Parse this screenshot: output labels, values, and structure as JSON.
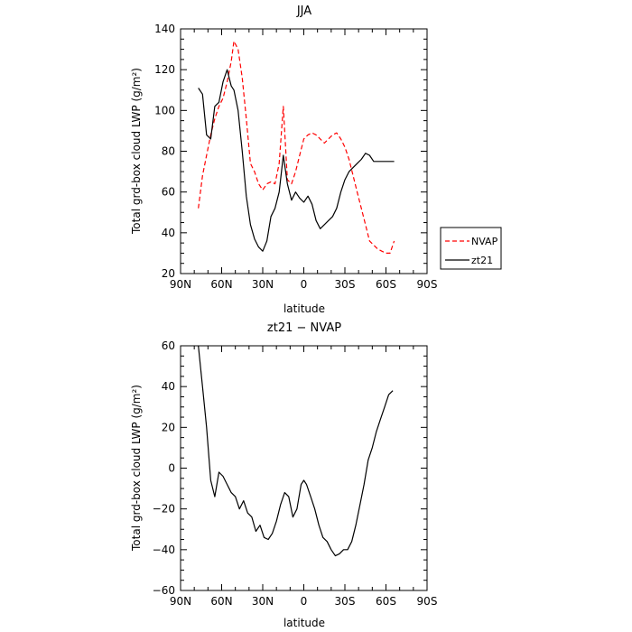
{
  "chart_data": [
    {
      "type": "line",
      "title": "JJA",
      "xlabel": "latitude",
      "ylabel": "Total grd-box cloud LWP (g/m²)",
      "xlim": [
        90,
        -90
      ],
      "ylim": [
        20,
        140
      ],
      "xticks": [
        90,
        60,
        30,
        0,
        -30,
        -60,
        -90
      ],
      "xtick_labels": [
        "90N",
        "60N",
        "30N",
        "0",
        "30S",
        "60S",
        "90S"
      ],
      "yticks": [
        20,
        40,
        60,
        80,
        100,
        120,
        140
      ],
      "ytick_labels": [
        "20",
        "40",
        "60",
        "80",
        "100",
        "120",
        "140"
      ],
      "legend_position": "outside-right",
      "series": [
        {
          "name": "NVAP",
          "color": "#ff0000",
          "dash": "dashed",
          "x": [
            77,
            74,
            71,
            68,
            65,
            62,
            59,
            56,
            53,
            51,
            48,
            45,
            42,
            39,
            36,
            33,
            30,
            27,
            24,
            21,
            18,
            15,
            12,
            9,
            6,
            3,
            0,
            -3,
            -6,
            -9,
            -12,
            -15,
            -18,
            -21,
            -24,
            -27,
            -30,
            -33,
            -36,
            -39,
            -42,
            -45,
            -48,
            -51,
            -54,
            -57,
            -60,
            -63,
            -66
          ],
          "y": [
            52,
            68,
            78,
            88,
            96,
            102,
            106,
            114,
            124,
            134,
            130,
            116,
            96,
            74,
            70,
            64,
            61,
            64,
            65,
            64,
            74,
            102,
            66,
            64,
            70,
            78,
            86,
            88,
            89,
            88,
            86,
            84,
            86,
            88,
            89,
            86,
            82,
            76,
            68,
            60,
            52,
            44,
            36,
            34,
            32,
            31,
            30,
            30,
            36
          ]
        },
        {
          "name": "zt21",
          "color": "#000000",
          "dash": "solid",
          "x": [
            77,
            74,
            71,
            68,
            65,
            62,
            59,
            56,
            53,
            51,
            48,
            45,
            42,
            39,
            36,
            33,
            30,
            27,
            24,
            21,
            18,
            15,
            12,
            9,
            6,
            3,
            0,
            -3,
            -6,
            -9,
            -12,
            -15,
            -18,
            -21,
            -24,
            -27,
            -30,
            -33,
            -36,
            -39,
            -42,
            -45,
            -48,
            -51,
            -54,
            -57,
            -60,
            -63,
            -66
          ],
          "y": [
            111,
            108,
            88,
            86,
            102,
            104,
            114,
            120,
            112,
            110,
            100,
            80,
            58,
            44,
            37,
            33,
            31,
            36,
            48,
            52,
            60,
            78,
            64,
            56,
            60,
            57,
            55,
            58,
            54,
            46,
            42,
            44,
            46,
            48,
            52,
            60,
            66,
            70,
            72,
            74,
            76,
            79,
            78,
            75,
            75,
            75,
            75,
            75,
            75
          ]
        }
      ]
    },
    {
      "type": "line",
      "title": "zt21 − NVAP",
      "xlabel": "latitude",
      "ylabel": "Total grd-box cloud LWP (g/m²)",
      "xlim": [
        90,
        -90
      ],
      "ylim": [
        -60,
        60
      ],
      "xticks": [
        90,
        60,
        30,
        0,
        -30,
        -60,
        -90
      ],
      "xtick_labels": [
        "90N",
        "60N",
        "30N",
        "0",
        "30S",
        "60S",
        "90S"
      ],
      "yticks": [
        -60,
        -40,
        -20,
        0,
        20,
        40,
        60
      ],
      "ytick_labels": [
        "−60",
        "−40",
        "−20",
        "0",
        "20",
        "40",
        "60"
      ],
      "series": [
        {
          "color": "#000000",
          "dash": "solid",
          "x": [
            77,
            74,
            71,
            68,
            65,
            62,
            59,
            56,
            53,
            50,
            47,
            44,
            41,
            38,
            35,
            32,
            29,
            26,
            23,
            20,
            17,
            14,
            11,
            8,
            5,
            2,
            0,
            -2,
            -5,
            -8,
            -11,
            -14,
            -17,
            -20,
            -23,
            -26,
            -29,
            -32,
            -35,
            -38,
            -41,
            -44,
            -47,
            -50,
            -53,
            -56,
            -59,
            -62,
            -65
          ],
          "y": [
            60,
            40,
            20,
            -6,
            -14,
            -2,
            -4,
            -8,
            -12,
            -14,
            -20,
            -16,
            -22,
            -24,
            -31,
            -28,
            -34,
            -35,
            -32,
            -26,
            -18,
            -12,
            -14,
            -24,
            -20,
            -8,
            -6,
            -8,
            -14,
            -20,
            -28,
            -34,
            -36,
            -40,
            -43,
            -42,
            -40,
            -40,
            -36,
            -28,
            -18,
            -8,
            4,
            10,
            18,
            24,
            30,
            36,
            38
          ]
        }
      ]
    }
  ]
}
